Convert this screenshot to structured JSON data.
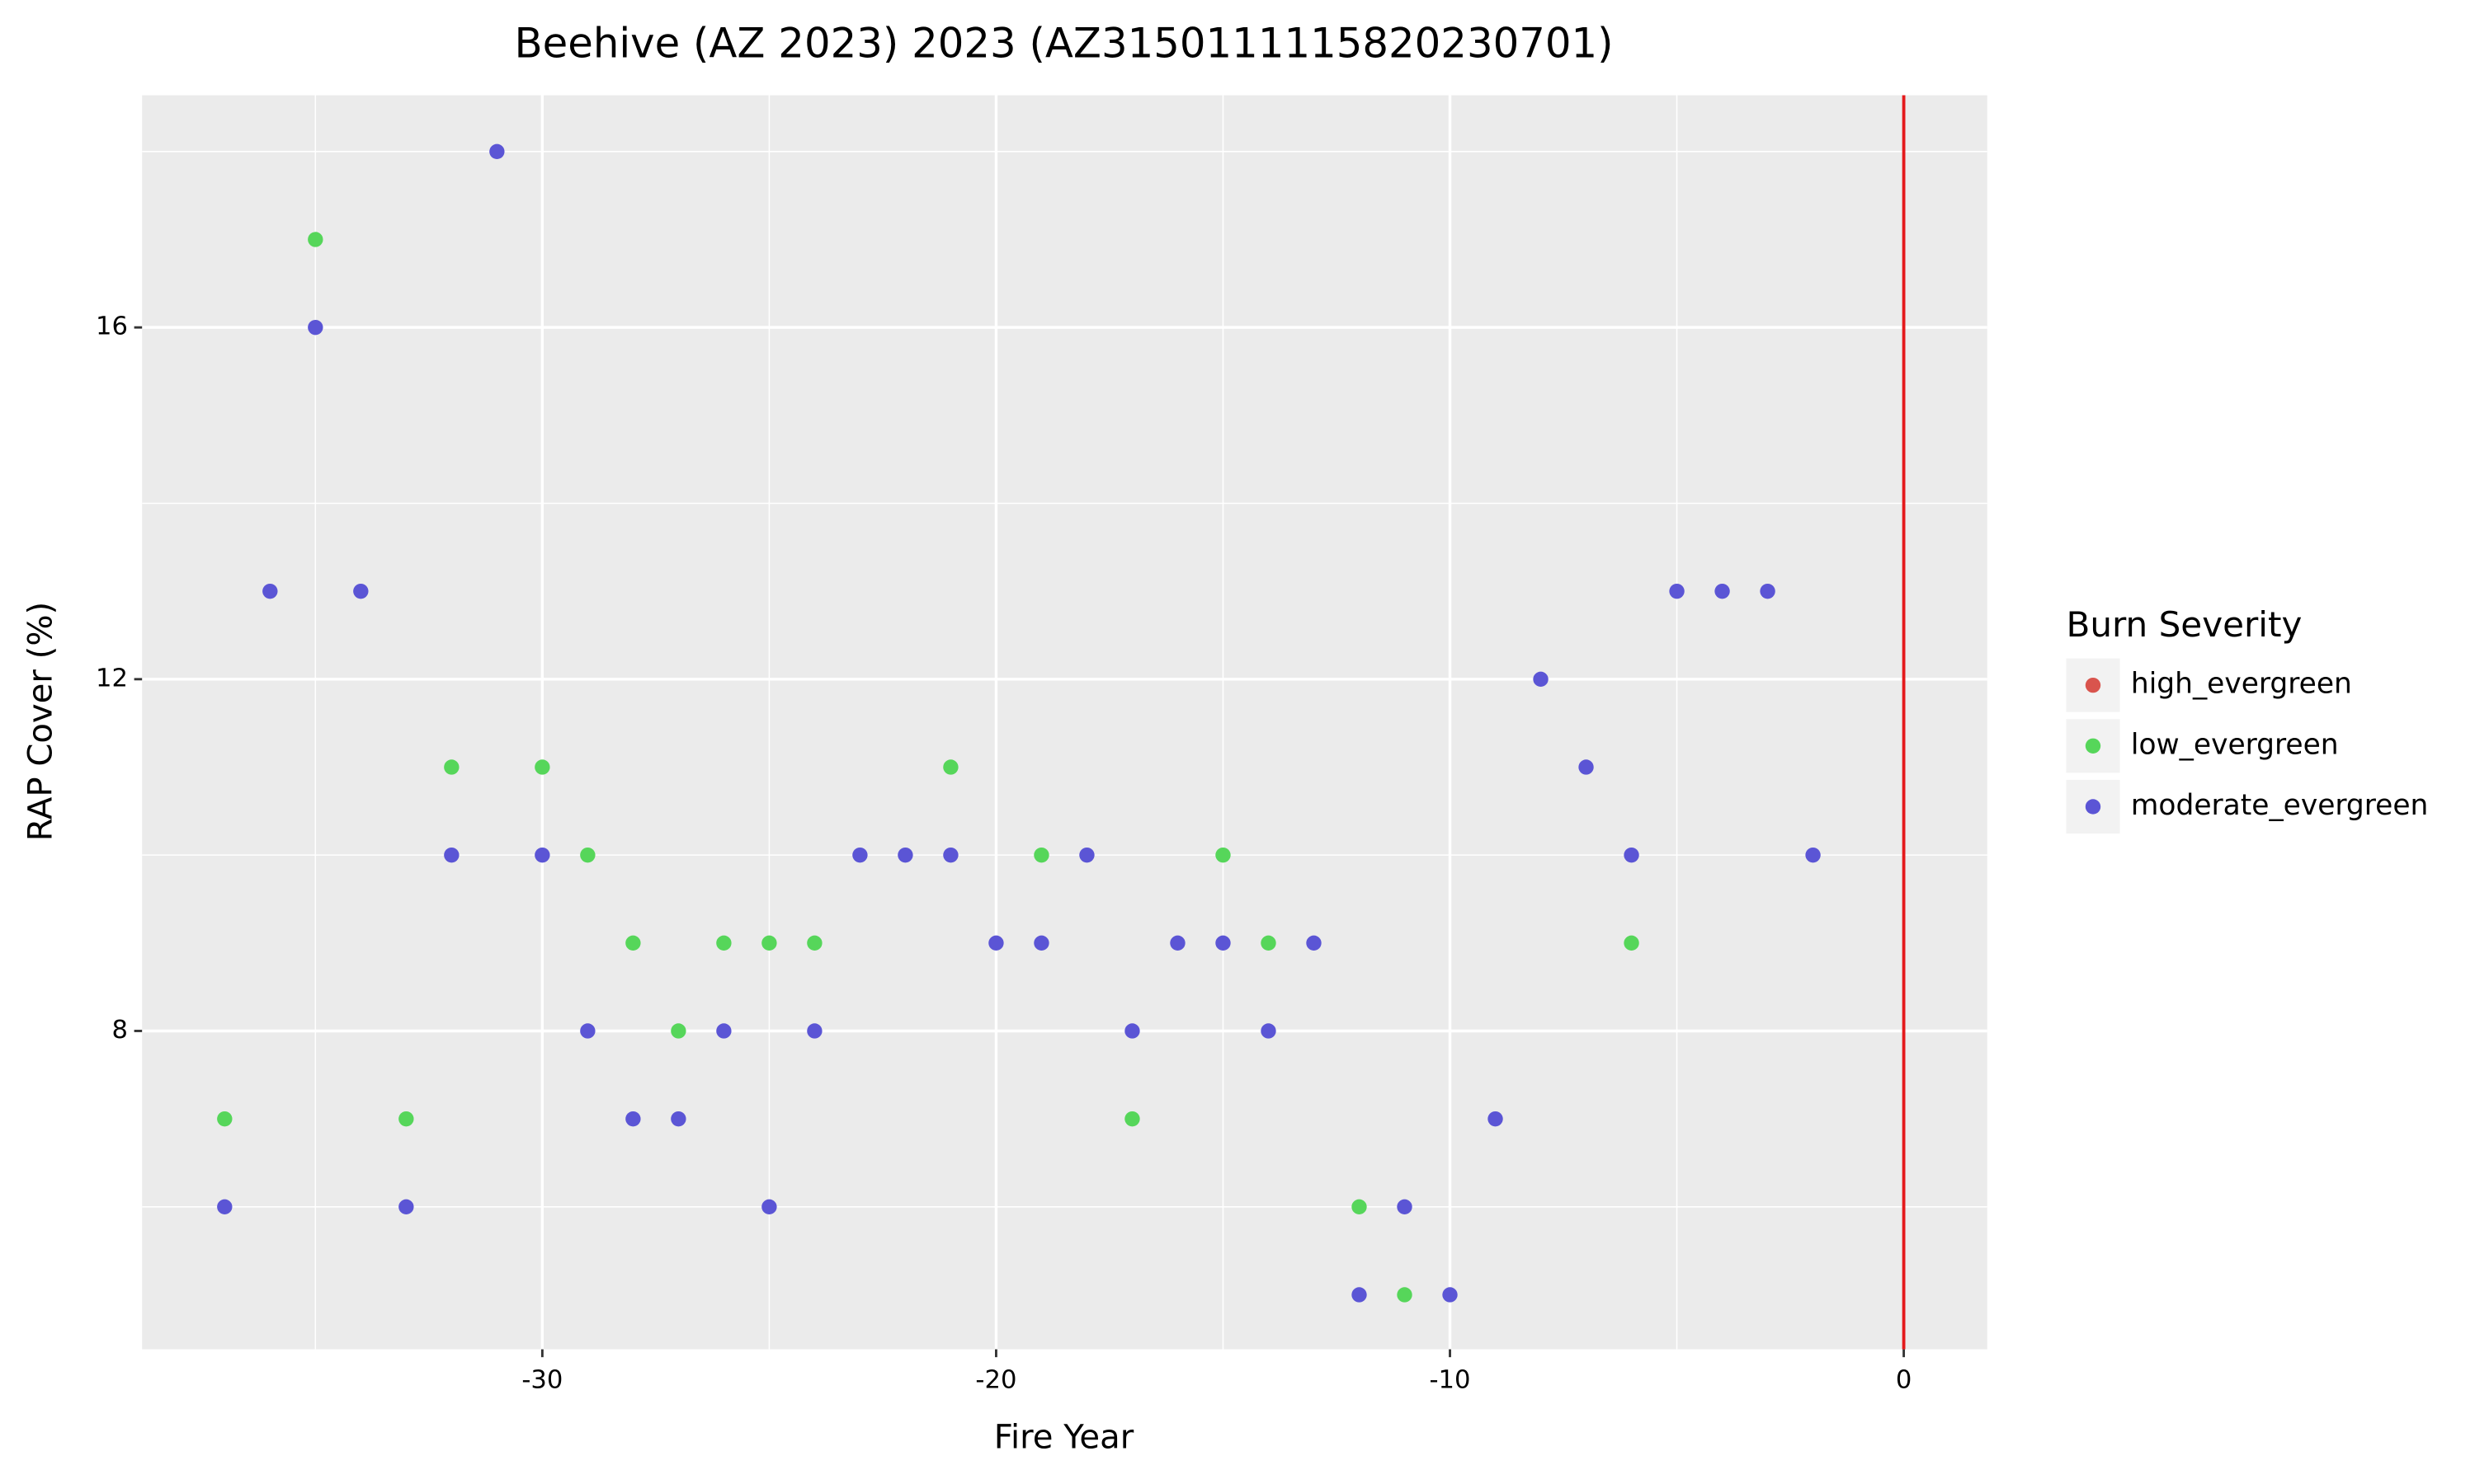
{
  "chart_data": {
    "type": "scatter",
    "title": "Beehive (AZ 2023) 2023 (AZ3150111115820230701)",
    "x_label": "Fire Year",
    "y_label": "RAP Cover (%)",
    "xlim": [
      -38.82,
      1.84
    ],
    "ylim": [
      4.38,
      18.64
    ],
    "xticks": [
      -30,
      -20,
      -10,
      0
    ],
    "yticks": [
      8,
      12,
      16
    ],
    "minor_xticks": [
      -35,
      -25,
      -15,
      -5
    ],
    "minor_yticks": [
      6,
      10,
      14,
      18
    ],
    "grid": true,
    "vline": 0,
    "vline_color": "#e41a1c",
    "legend_title": "Burn Severity",
    "legend_position": "right",
    "series": [
      {
        "name": "high_evergreen",
        "color": "#d9544d",
        "x": [],
        "values": []
      },
      {
        "name": "low_evergreen",
        "color": "#56d65a",
        "x": [
          -37,
          -35,
          -33,
          -32,
          -30,
          -29,
          -28,
          -27,
          -26,
          -25,
          -24,
          -21,
          -19,
          -17,
          -15,
          -14,
          -12,
          -11,
          -6
        ],
        "values": [
          7,
          17,
          7,
          11,
          11,
          10,
          9,
          8,
          9,
          9,
          9,
          11,
          10,
          7,
          10,
          9,
          6,
          5,
          9
        ]
      },
      {
        "name": "moderate_evergreen",
        "color": "#5b55d5",
        "x": [
          -37,
          -36,
          -35,
          -34,
          -33,
          -32,
          -31,
          -30,
          -29,
          -28,
          -27,
          -26,
          -25,
          -24,
          -23,
          -22,
          -21,
          -20,
          -19,
          -18,
          -17,
          -16,
          -15,
          -14,
          -13,
          -12,
          -11,
          -10,
          -9,
          -8,
          -7,
          -6,
          -5,
          -4,
          -3,
          -2
        ],
        "values": [
          6,
          13,
          16,
          13,
          6,
          10,
          18,
          10,
          8,
          7,
          7,
          8,
          6,
          8,
          10,
          10,
          10,
          9,
          9,
          10,
          8,
          9,
          9,
          8,
          9,
          5,
          6,
          5,
          7,
          12,
          11,
          10,
          13,
          13,
          13,
          10
        ]
      }
    ]
  }
}
